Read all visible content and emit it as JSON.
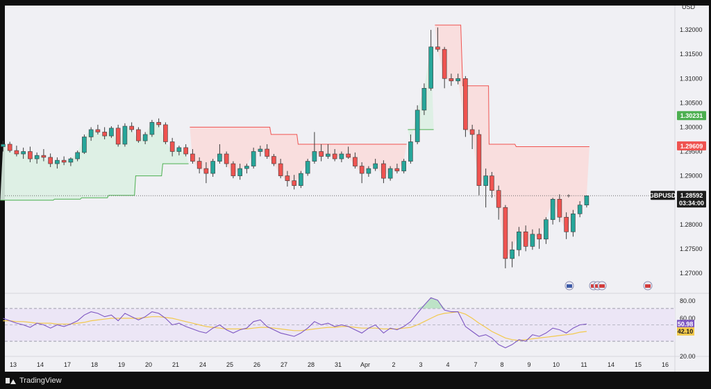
{
  "brand": {
    "name": "TradingView",
    "logo_icon": "tradingview-logo-icon"
  },
  "price_axis": {
    "currency": "USD"
  },
  "colors": {
    "up": "#26a69a",
    "down": "#ef5350",
    "supertrend_up_fill": "#dcefe3",
    "supertrend_down_fill": "#f9dcdc",
    "rsi_line": "#7e57c2",
    "rsi_ma": "#f2c94c",
    "rsi_band_fill": "#ece6f6"
  },
  "chart_data": {
    "type": "candlestick",
    "symbol": "GBPUSD",
    "ylim": [
      1.266,
      1.325
    ],
    "y_ticks": [
      "1.32000",
      "1.31500",
      "1.31000",
      "1.30500",
      "1.30000",
      "1.29500",
      "1.29000",
      "1.28500",
      "1.28000",
      "1.27500",
      "1.27000"
    ],
    "x_ticks": [
      "13",
      "14",
      "17",
      "18",
      "19",
      "20",
      "21",
      "24",
      "25",
      "26",
      "27",
      "28",
      "31",
      "Apr",
      "2",
      "3",
      "4",
      "7",
      "8",
      "9",
      "10",
      "11",
      "14",
      "15",
      "16"
    ],
    "price_labels": [
      {
        "value": "1.30231",
        "role": "supertrend-up"
      },
      {
        "value": "1.29609",
        "role": "supertrend-down"
      },
      {
        "value": "1.28592",
        "role": "last-price",
        "symbol": "GBPUSD",
        "countdown": "03:34:00"
      }
    ],
    "event_markers": [
      "US",
      "UK",
      "UK",
      "UK",
      "UK"
    ],
    "candles_by_day": [
      {
        "day": "13",
        "ohlc": [
          [
            1.296,
            1.2972,
            1.295,
            1.2965
          ],
          [
            1.2965,
            1.297,
            1.2948,
            1.2952
          ],
          [
            1.2952,
            1.2962,
            1.294,
            1.2945
          ],
          [
            1.2945,
            1.2958,
            1.2935,
            1.295
          ]
        ]
      },
      {
        "day": "14",
        "ohlc": [
          [
            1.295,
            1.296,
            1.2928,
            1.2935
          ],
          [
            1.2935,
            1.2948,
            1.2925,
            1.2942
          ],
          [
            1.2942,
            1.2955,
            1.293,
            1.2938
          ],
          [
            1.2938,
            1.2946,
            1.2918,
            1.2925
          ]
        ]
      },
      {
        "day": "17",
        "ohlc": [
          [
            1.2925,
            1.2938,
            1.2915,
            1.2932
          ],
          [
            1.2932,
            1.294,
            1.2922,
            1.2928
          ],
          [
            1.2928,
            1.2938,
            1.292,
            1.2935
          ],
          [
            1.2935,
            1.2952,
            1.293,
            1.2948
          ]
        ]
      },
      {
        "day": "18",
        "ohlc": [
          [
            1.2948,
            1.2985,
            1.2945,
            1.298
          ],
          [
            1.298,
            1.3,
            1.2972,
            1.2995
          ],
          [
            1.2995,
            1.3005,
            1.2985,
            1.299
          ],
          [
            1.299,
            1.3,
            1.2975,
            1.2982
          ]
        ]
      },
      {
        "day": "19",
        "ohlc": [
          [
            1.2982,
            1.3002,
            1.2978,
            1.2998
          ],
          [
            1.2998,
            1.3005,
            1.296,
            1.2965
          ],
          [
            1.2965,
            1.3008,
            1.296,
            1.3002
          ],
          [
            1.3002,
            1.301,
            1.299,
            1.2995
          ]
        ]
      },
      {
        "day": "20",
        "ohlc": [
          [
            1.2995,
            1.3,
            1.2968,
            1.2972
          ],
          [
            1.2972,
            1.299,
            1.2965,
            1.2985
          ],
          [
            1.2985,
            1.3015,
            1.298,
            1.301
          ],
          [
            1.301,
            1.3018,
            1.3,
            1.3005
          ]
        ]
      },
      {
        "day": "21",
        "ohlc": [
          [
            1.3005,
            1.301,
            1.2965,
            1.297
          ],
          [
            1.297,
            1.2978,
            1.294,
            1.295
          ],
          [
            1.295,
            1.2962,
            1.2942,
            1.2958
          ],
          [
            1.2958,
            1.2965,
            1.294,
            1.2945
          ]
        ]
      },
      {
        "day": "24",
        "ohlc": [
          [
            1.2945,
            1.2955,
            1.2925,
            1.293
          ],
          [
            1.293,
            1.2938,
            1.2905,
            1.2915
          ],
          [
            1.2915,
            1.2928,
            1.2885,
            1.2905
          ],
          [
            1.2905,
            1.2935,
            1.2898,
            1.293
          ]
        ]
      },
      {
        "day": "25",
        "ohlc": [
          [
            1.293,
            1.2965,
            1.2925,
            1.2945
          ],
          [
            1.2945,
            1.295,
            1.2918,
            1.2925
          ],
          [
            1.2925,
            1.293,
            1.2895,
            1.29
          ],
          [
            1.29,
            1.2925,
            1.2892,
            1.2915
          ]
        ]
      },
      {
        "day": "26",
        "ohlc": [
          [
            1.2915,
            1.2925,
            1.2905,
            1.292
          ],
          [
            1.292,
            1.2958,
            1.2915,
            1.295
          ],
          [
            1.295,
            1.2962,
            1.294,
            1.2955
          ],
          [
            1.2955,
            1.2965,
            1.2935,
            1.294
          ]
        ]
      },
      {
        "day": "27",
        "ohlc": [
          [
            1.294,
            1.2945,
            1.292,
            1.2925
          ],
          [
            1.2925,
            1.2935,
            1.2895,
            1.29
          ],
          [
            1.29,
            1.291,
            1.2878,
            1.289
          ],
          [
            1.289,
            1.2902,
            1.2872,
            1.288
          ]
        ]
      },
      {
        "day": "28",
        "ohlc": [
          [
            1.288,
            1.291,
            1.2875,
            1.2905
          ],
          [
            1.2905,
            1.2935,
            1.29,
            1.293
          ],
          [
            1.293,
            1.299,
            1.2925,
            1.295
          ],
          [
            1.295,
            1.2965,
            1.293,
            1.294
          ]
        ]
      },
      {
        "day": "31",
        "ohlc": [
          [
            1.294,
            1.2965,
            1.2935,
            1.2945
          ],
          [
            1.2945,
            1.2955,
            1.293,
            1.2935
          ],
          [
            1.2935,
            1.295,
            1.2928,
            1.2945
          ],
          [
            1.2945,
            1.296,
            1.2935,
            1.2938
          ]
        ]
      },
      {
        "day": "Apr",
        "ohlc": [
          [
            1.2938,
            1.2948,
            1.2915,
            1.292
          ],
          [
            1.292,
            1.2928,
            1.2885,
            1.2905
          ],
          [
            1.2905,
            1.292,
            1.2898,
            1.2915
          ],
          [
            1.2915,
            1.2935,
            1.291,
            1.2925
          ]
        ]
      },
      {
        "day": "2",
        "ohlc": [
          [
            1.2925,
            1.2932,
            1.2885,
            1.2895
          ],
          [
            1.2895,
            1.292,
            1.289,
            1.2915
          ],
          [
            1.2915,
            1.2925,
            1.2905,
            1.291
          ],
          [
            1.291,
            1.2935,
            1.2905,
            1.293
          ]
        ]
      },
      {
        "day": "3",
        "ohlc": [
          [
            1.293,
            1.2985,
            1.2925,
            1.297
          ],
          [
            1.297,
            1.3045,
            1.2965,
            1.3035
          ],
          [
            1.3035,
            1.309,
            1.3025,
            1.308
          ],
          [
            1.308,
            1.32,
            1.3075,
            1.3165
          ]
        ]
      },
      {
        "day": "4",
        "ohlc": [
          [
            1.3165,
            1.3205,
            1.3155,
            1.316
          ],
          [
            1.316,
            1.3165,
            1.308,
            1.31
          ],
          [
            1.31,
            1.311,
            1.3085,
            1.3095
          ],
          [
            1.3095,
            1.311,
            1.3088,
            1.31
          ]
        ]
      },
      {
        "day": "7",
        "ohlc": [
          [
            1.31,
            1.3105,
            1.298,
            1.2995
          ],
          [
            1.2995,
            1.3005,
            1.2955,
            1.2985
          ],
          [
            1.2985,
            1.2995,
            1.286,
            1.288
          ],
          [
            1.288,
            1.2915,
            1.2835,
            1.29
          ]
        ]
      },
      {
        "day": "8",
        "ohlc": [
          [
            1.29,
            1.2908,
            1.2855,
            1.287
          ],
          [
            1.287,
            1.288,
            1.281,
            1.2835
          ],
          [
            1.2835,
            1.284,
            1.271,
            1.273
          ],
          [
            1.273,
            1.2765,
            1.2712,
            1.2748
          ]
        ]
      },
      {
        "day": "9",
        "ohlc": [
          [
            1.2748,
            1.2795,
            1.2735,
            1.2785
          ],
          [
            1.2785,
            1.2798,
            1.2745,
            1.2755
          ],
          [
            1.2755,
            1.279,
            1.2748,
            1.278
          ],
          [
            1.278,
            1.2792,
            1.275,
            1.277
          ]
        ]
      },
      {
        "day": "10",
        "ohlc": [
          [
            1.277,
            1.2815,
            1.276,
            1.281
          ],
          [
            1.281,
            1.2855,
            1.28,
            1.2852
          ],
          [
            1.2852,
            1.2862,
            1.2805,
            1.2815
          ],
          [
            1.2815,
            1.2825,
            1.277,
            1.2785
          ],
          [
            1.2785,
            1.283,
            1.2775,
            1.2822
          ],
          [
            1.2822,
            1.2848,
            1.2815,
            1.284
          ],
          [
            1.284,
            1.286,
            1.2835,
            1.2859
          ]
        ]
      }
    ],
    "supertrend": [
      {
        "trend": "up",
        "days": [
          "13",
          "14",
          "17",
          "18",
          "19",
          "20",
          "21"
        ],
        "values": [
          1.285,
          1.285,
          1.2852,
          1.2855,
          1.286,
          1.29,
          1.2925
        ]
      },
      {
        "trend": "down",
        "days": [
          "24",
          "25",
          "26",
          "27",
          "28",
          "31",
          "Apr",
          "2"
        ],
        "values": [
          1.3,
          1.3,
          1.3,
          1.2985,
          1.2965,
          1.2965,
          1.2965,
          1.2965
        ]
      },
      {
        "trend": "up",
        "days": [
          "3"
        ],
        "values": [
          1.2995
        ]
      },
      {
        "trend": "down",
        "days": [
          "4",
          "7",
          "8",
          "9",
          "10"
        ],
        "values": [
          1.321,
          1.3085,
          1.2965,
          1.296,
          1.296
        ]
      }
    ],
    "rsi": {
      "ylim": [
        20,
        80
      ],
      "y_ticks": [
        "80.00",
        "60.00",
        "20.00"
      ],
      "bands": [
        70,
        30
      ],
      "midline": 50,
      "rsi_value": "50.98",
      "ma_value": "42.10",
      "rsi_by_day": [
        {
          "day": "13",
          "values": [
            58,
            55,
            52,
            50
          ]
        },
        {
          "day": "14",
          "values": [
            47,
            52,
            50,
            46
          ]
        },
        {
          "day": "17",
          "values": [
            50,
            48,
            51,
            55
          ]
        },
        {
          "day": "18",
          "values": [
            62,
            66,
            64,
            60
          ]
        },
        {
          "day": "19",
          "values": [
            62,
            55,
            64,
            60
          ]
        },
        {
          "day": "20",
          "values": [
            56,
            60,
            66,
            64
          ]
        },
        {
          "day": "21",
          "values": [
            58,
            50,
            52,
            48
          ]
        },
        {
          "day": "24",
          "values": [
            45,
            42,
            40,
            46
          ]
        },
        {
          "day": "25",
          "values": [
            50,
            44,
            40,
            44
          ]
        },
        {
          "day": "26",
          "values": [
            46,
            54,
            56,
            48
          ]
        },
        {
          "day": "27",
          "values": [
            44,
            40,
            38,
            36
          ]
        },
        {
          "day": "28",
          "values": [
            40,
            46,
            54,
            50
          ]
        },
        {
          "day": "31",
          "values": [
            52,
            48,
            50,
            48
          ]
        },
        {
          "day": "Apr",
          "values": [
            44,
            40,
            46,
            50
          ]
        },
        {
          "day": "2",
          "values": [
            40,
            46,
            44,
            48
          ]
        },
        {
          "day": "3",
          "values": [
            54,
            64,
            74,
            83
          ]
        },
        {
          "day": "4",
          "values": [
            80,
            68,
            66,
            66
          ]
        },
        {
          "day": "7",
          "values": [
            48,
            42,
            36,
            38
          ]
        },
        {
          "day": "8",
          "values": [
            34,
            26,
            22,
            26
          ]
        },
        {
          "day": "9",
          "values": [
            32,
            30,
            38,
            36
          ]
        },
        {
          "day": "10",
          "values": [
            40,
            46,
            44,
            40,
            46,
            50,
            51
          ]
        }
      ],
      "ma_by_day": [
        {
          "day": "13",
          "values": [
            55,
            55,
            54,
            54
          ]
        },
        {
          "day": "14",
          "values": [
            53,
            52,
            52,
            52
          ]
        },
        {
          "day": "17",
          "values": [
            51,
            51,
            51,
            52
          ]
        },
        {
          "day": "18",
          "values": [
            53,
            55,
            56,
            57
          ]
        },
        {
          "day": "19",
          "values": [
            58,
            58,
            58,
            58
          ]
        },
        {
          "day": "20",
          "values": [
            58,
            59,
            60,
            60
          ]
        },
        {
          "day": "21",
          "values": [
            59,
            58,
            56,
            54
          ]
        },
        {
          "day": "24",
          "values": [
            52,
            50,
            48,
            47
          ]
        },
        {
          "day": "25",
          "values": [
            46,
            45,
            45,
            45
          ]
        },
        {
          "day": "26",
          "values": [
            45,
            46,
            47,
            47
          ]
        },
        {
          "day": "27",
          "values": [
            46,
            45,
            44,
            43
          ]
        },
        {
          "day": "28",
          "values": [
            43,
            44,
            45,
            46
          ]
        },
        {
          "day": "31",
          "values": [
            47,
            47,
            48,
            48
          ]
        },
        {
          "day": "Apr",
          "values": [
            47,
            46,
            46,
            46
          ]
        },
        {
          "day": "2",
          "values": [
            45,
            45,
            45,
            46
          ]
        },
        {
          "day": "3",
          "values": [
            47,
            50,
            54,
            58
          ]
        },
        {
          "day": "4",
          "values": [
            62,
            64,
            65,
            66
          ]
        },
        {
          "day": "7",
          "values": [
            63,
            58,
            52,
            47
          ]
        },
        {
          "day": "8",
          "values": [
            42,
            38,
            34,
            32
          ]
        },
        {
          "day": "9",
          "values": [
            31,
            32,
            33,
            34
          ]
        },
        {
          "day": "10",
          "values": [
            35,
            36,
            37,
            38,
            39,
            41,
            42
          ]
        }
      ]
    }
  }
}
